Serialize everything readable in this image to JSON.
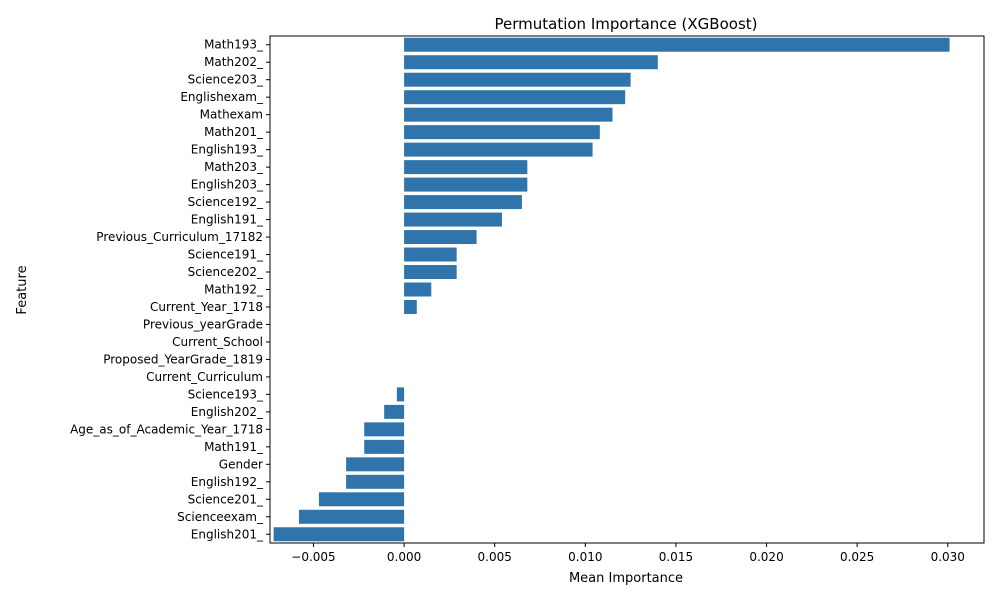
{
  "chart_data": {
    "type": "bar",
    "orientation": "horizontal",
    "title": "Permutation Importance (XGBoost)",
    "xlabel": "Mean Importance",
    "ylabel": "Feature",
    "xlim": [
      -0.0074,
      0.032
    ],
    "xticks": [
      -0.005,
      0.0,
      0.005,
      0.01,
      0.015,
      0.02,
      0.025,
      0.03
    ],
    "xtick_labels": [
      "−0.005",
      "0.000",
      "0.005",
      "0.010",
      "0.015",
      "0.020",
      "0.025",
      "0.030"
    ],
    "grid": false,
    "bar_color": "#2f75ab",
    "categories": [
      "Math193_",
      "Math202_",
      "Science203_",
      "Englishexam_",
      "Mathexam",
      "Math201_",
      "English193_",
      "Math203_",
      "English203_",
      "Science192_",
      "English191_",
      "Previous_Curriculum_17182",
      "Science191_",
      "Science202_",
      "Math192_",
      "Current_Year_1718",
      "Previous_yearGrade",
      "Current_School",
      "Proposed_YearGrade_1819",
      "Current_Curriculum",
      "Science193_",
      "English202_",
      "Age_as_of_Academic_Year_1718",
      "Math191_",
      "Gender",
      "English192_",
      "Science201_",
      "Scienceexam_",
      "English201_"
    ],
    "values": [
      0.0301,
      0.014,
      0.0125,
      0.0122,
      0.0115,
      0.0108,
      0.0104,
      0.0068,
      0.0068,
      0.0065,
      0.0054,
      0.004,
      0.0029,
      0.0029,
      0.0015,
      0.0007,
      0.0,
      0.0,
      0.0,
      0.0,
      -0.0004,
      -0.0011,
      -0.0022,
      -0.0022,
      -0.0032,
      -0.0032,
      -0.0047,
      -0.0058,
      -0.0072
    ]
  }
}
